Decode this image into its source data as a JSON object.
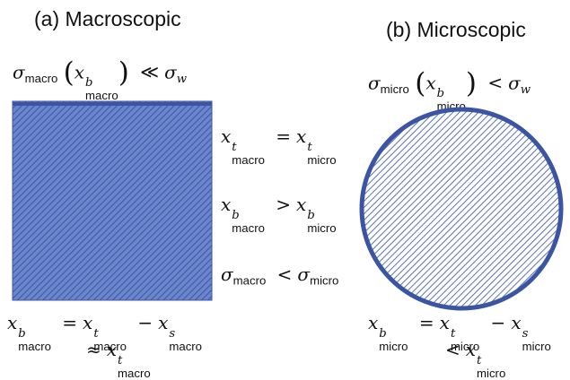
{
  "titles": {
    "left": "(a) Macroscopic",
    "right": "(b) Microscopic"
  },
  "symbols": {
    "sigma": "σ",
    "x": "x",
    "lparen": "(",
    "rparen": ")",
    "much_less": "≪",
    "less": "<",
    "greater": ">",
    "equals": "=",
    "minus": "−",
    "approx": "≈",
    "w": "w",
    "b": "b",
    "t": "t",
    "s": "s",
    "macro": "macro",
    "micro": "micro"
  },
  "colors": {
    "shape_fill": "#6b86cc",
    "shape_border": "#3b55a4",
    "hatch_dark": "#3d5aa8",
    "hatch_light": "#ffffff"
  }
}
